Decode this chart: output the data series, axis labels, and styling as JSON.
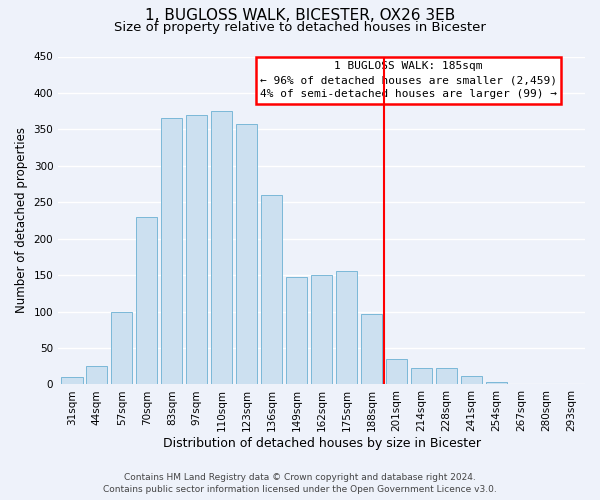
{
  "title": "1, BUGLOSS WALK, BICESTER, OX26 3EB",
  "subtitle": "Size of property relative to detached houses in Bicester",
  "xlabel": "Distribution of detached houses by size in Bicester",
  "ylabel": "Number of detached properties",
  "bar_labels": [
    "31sqm",
    "44sqm",
    "57sqm",
    "70sqm",
    "83sqm",
    "97sqm",
    "110sqm",
    "123sqm",
    "136sqm",
    "149sqm",
    "162sqm",
    "175sqm",
    "188sqm",
    "201sqm",
    "214sqm",
    "228sqm",
    "241sqm",
    "254sqm",
    "267sqm",
    "280sqm",
    "293sqm"
  ],
  "bar_values": [
    10,
    25,
    100,
    230,
    365,
    370,
    375,
    358,
    260,
    148,
    150,
    155,
    97,
    35,
    22,
    22,
    11,
    3,
    1,
    0,
    1
  ],
  "bar_color": "#cce0f0",
  "bar_edge_color": "#7ab8d8",
  "reference_line_x": 12.5,
  "ylim": [
    0,
    450
  ],
  "yticks": [
    0,
    50,
    100,
    150,
    200,
    250,
    300,
    350,
    400,
    450
  ],
  "annotation_title": "1 BUGLOSS WALK: 185sqm",
  "annotation_line1": "← 96% of detached houses are smaller (2,459)",
  "annotation_line2": "4% of semi-detached houses are larger (99) →",
  "footer_line1": "Contains HM Land Registry data © Crown copyright and database right 2024.",
  "footer_line2": "Contains public sector information licensed under the Open Government Licence v3.0.",
  "background_color": "#eef2fa",
  "grid_color": "#ffffff",
  "title_fontsize": 11,
  "subtitle_fontsize": 9.5,
  "xlabel_fontsize": 9,
  "ylabel_fontsize": 8.5,
  "tick_fontsize": 7.5,
  "footer_fontsize": 6.5,
  "annotation_fontsize": 8
}
